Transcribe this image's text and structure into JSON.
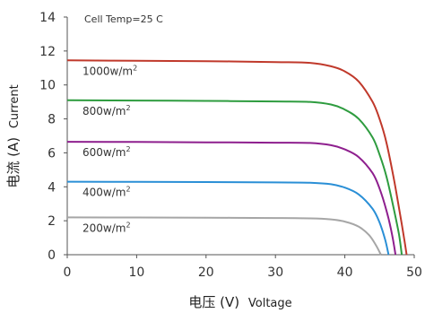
{
  "chart_data": {
    "type": "line",
    "annotation": "Cell Temp=25 C",
    "xlabel": {
      "cn": "电压 (V)",
      "en": "Voltage"
    },
    "ylabel": {
      "cn": "电流 (A)",
      "en": "Current"
    },
    "xlim": [
      0,
      50
    ],
    "ylim": [
      0,
      14
    ],
    "xticks": [
      0,
      10,
      20,
      30,
      40,
      50
    ],
    "yticks": [
      0,
      2,
      4,
      6,
      8,
      10,
      12,
      14
    ],
    "grid": false,
    "series": [
      {
        "name": "1000w/m2",
        "label_main": "1000w/m",
        "label_sup": "2",
        "color": "#c0392b",
        "isc": 11.45,
        "x": [
          0,
          10,
          20,
          30,
          35,
          38,
          40,
          42,
          44,
          45,
          46,
          47,
          47.7,
          48.2,
          48.6,
          48.9
        ],
        "y": [
          11.45,
          11.42,
          11.4,
          11.35,
          11.3,
          11.1,
          10.8,
          10.2,
          9.0,
          8.0,
          6.6,
          4.6,
          3.0,
          1.8,
          0.8,
          0
        ]
      },
      {
        "name": "800w/m2",
        "label_main": "800w/m",
        "label_sup": "2",
        "color": "#2e9c3f",
        "isc": 9.1,
        "x": [
          0,
          10,
          20,
          30,
          35,
          38,
          40,
          42,
          44,
          45,
          46,
          47,
          47.8,
          48.2
        ],
        "y": [
          9.1,
          9.08,
          9.06,
          9.03,
          9.0,
          8.85,
          8.55,
          8.0,
          6.9,
          5.9,
          4.6,
          2.8,
          1.2,
          0
        ]
      },
      {
        "name": "600w/m2",
        "label_main": "600w/m",
        "label_sup": "2",
        "color": "#8e1f8e",
        "isc": 6.65,
        "x": [
          0,
          10,
          20,
          30,
          35,
          38,
          40,
          42,
          44,
          45,
          46,
          46.8,
          47.3
        ],
        "y": [
          6.65,
          6.64,
          6.62,
          6.6,
          6.58,
          6.45,
          6.2,
          5.75,
          4.8,
          3.9,
          2.6,
          1.2,
          0
        ]
      },
      {
        "name": "400w/m2",
        "label_main": "400w/m",
        "label_sup": "2",
        "color": "#2a8fd6",
        "isc": 4.3,
        "x": [
          0,
          10,
          20,
          30,
          35,
          38,
          40,
          42,
          44,
          45,
          45.8,
          46.3
        ],
        "y": [
          4.3,
          4.29,
          4.28,
          4.26,
          4.24,
          4.15,
          3.95,
          3.55,
          2.7,
          1.9,
          0.9,
          0
        ]
      },
      {
        "name": "200w/m2",
        "label_main": "200w/m",
        "label_sup": "2",
        "color": "#a6a6a6",
        "isc": 2.2,
        "x": [
          0,
          10,
          20,
          30,
          35,
          38,
          40,
          42,
          43.5,
          44.5,
          45.2
        ],
        "y": [
          2.2,
          2.19,
          2.18,
          2.16,
          2.14,
          2.08,
          1.95,
          1.65,
          1.15,
          0.55,
          0
        ]
      }
    ]
  }
}
